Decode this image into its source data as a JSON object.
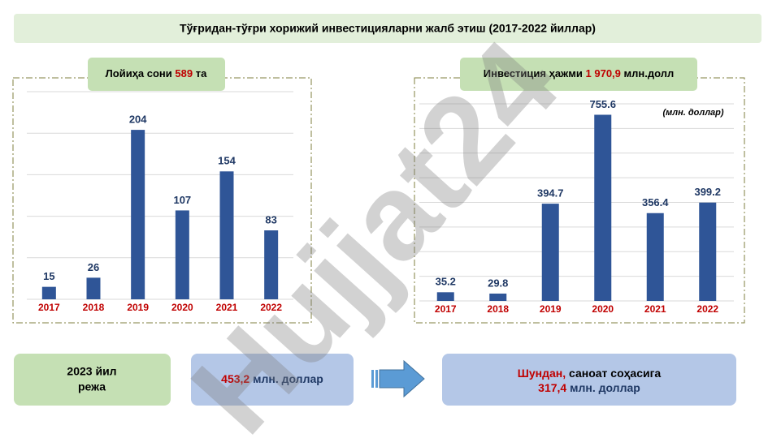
{
  "header": {
    "title": "Тўғридан-тўғри хорижий инвестицияларни жалб этиш (2017-2022 йиллар)"
  },
  "project_box": {
    "text": "Лойиҳа сони",
    "number": "589",
    "unit": "та"
  },
  "investment_box": {
    "text": "Инвестиция ҳажми",
    "number": "1 970,9",
    "unit": "млн.долл"
  },
  "plan_box": {
    "text": "2023 йил",
    "text2": "режа"
  },
  "plan_value_box": {
    "number": "453,2",
    "unit": "млн. доллар"
  },
  "industry_box": {
    "lead": "Шундан,",
    "text": "саноат соҳасига",
    "number": "317,4",
    "unit": "млн. доллар"
  },
  "watermark": "Hujjat24",
  "chart_data": [
    {
      "type": "bar",
      "categories": [
        "2017",
        "2018",
        "2019",
        "2020",
        "2021",
        "2022"
      ],
      "values": [
        15,
        26,
        204,
        107,
        154,
        83
      ],
      "color": "#2f5597",
      "ylim": [
        0,
        250
      ],
      "yticks": [
        0,
        50,
        100,
        150,
        200,
        250
      ],
      "grid": true
    },
    {
      "type": "bar",
      "annotation": "(млн. доллар)",
      "categories": [
        "2017",
        "2018",
        "2019",
        "2020",
        "2021",
        "2022"
      ],
      "values": [
        35.2,
        29.8,
        394.7,
        755.6,
        356.4,
        399.2
      ],
      "color": "#2f5597",
      "ylim": [
        0,
        800
      ],
      "yticks": [
        0,
        100,
        200,
        300,
        400,
        500,
        600,
        700,
        800
      ],
      "grid": true
    }
  ]
}
